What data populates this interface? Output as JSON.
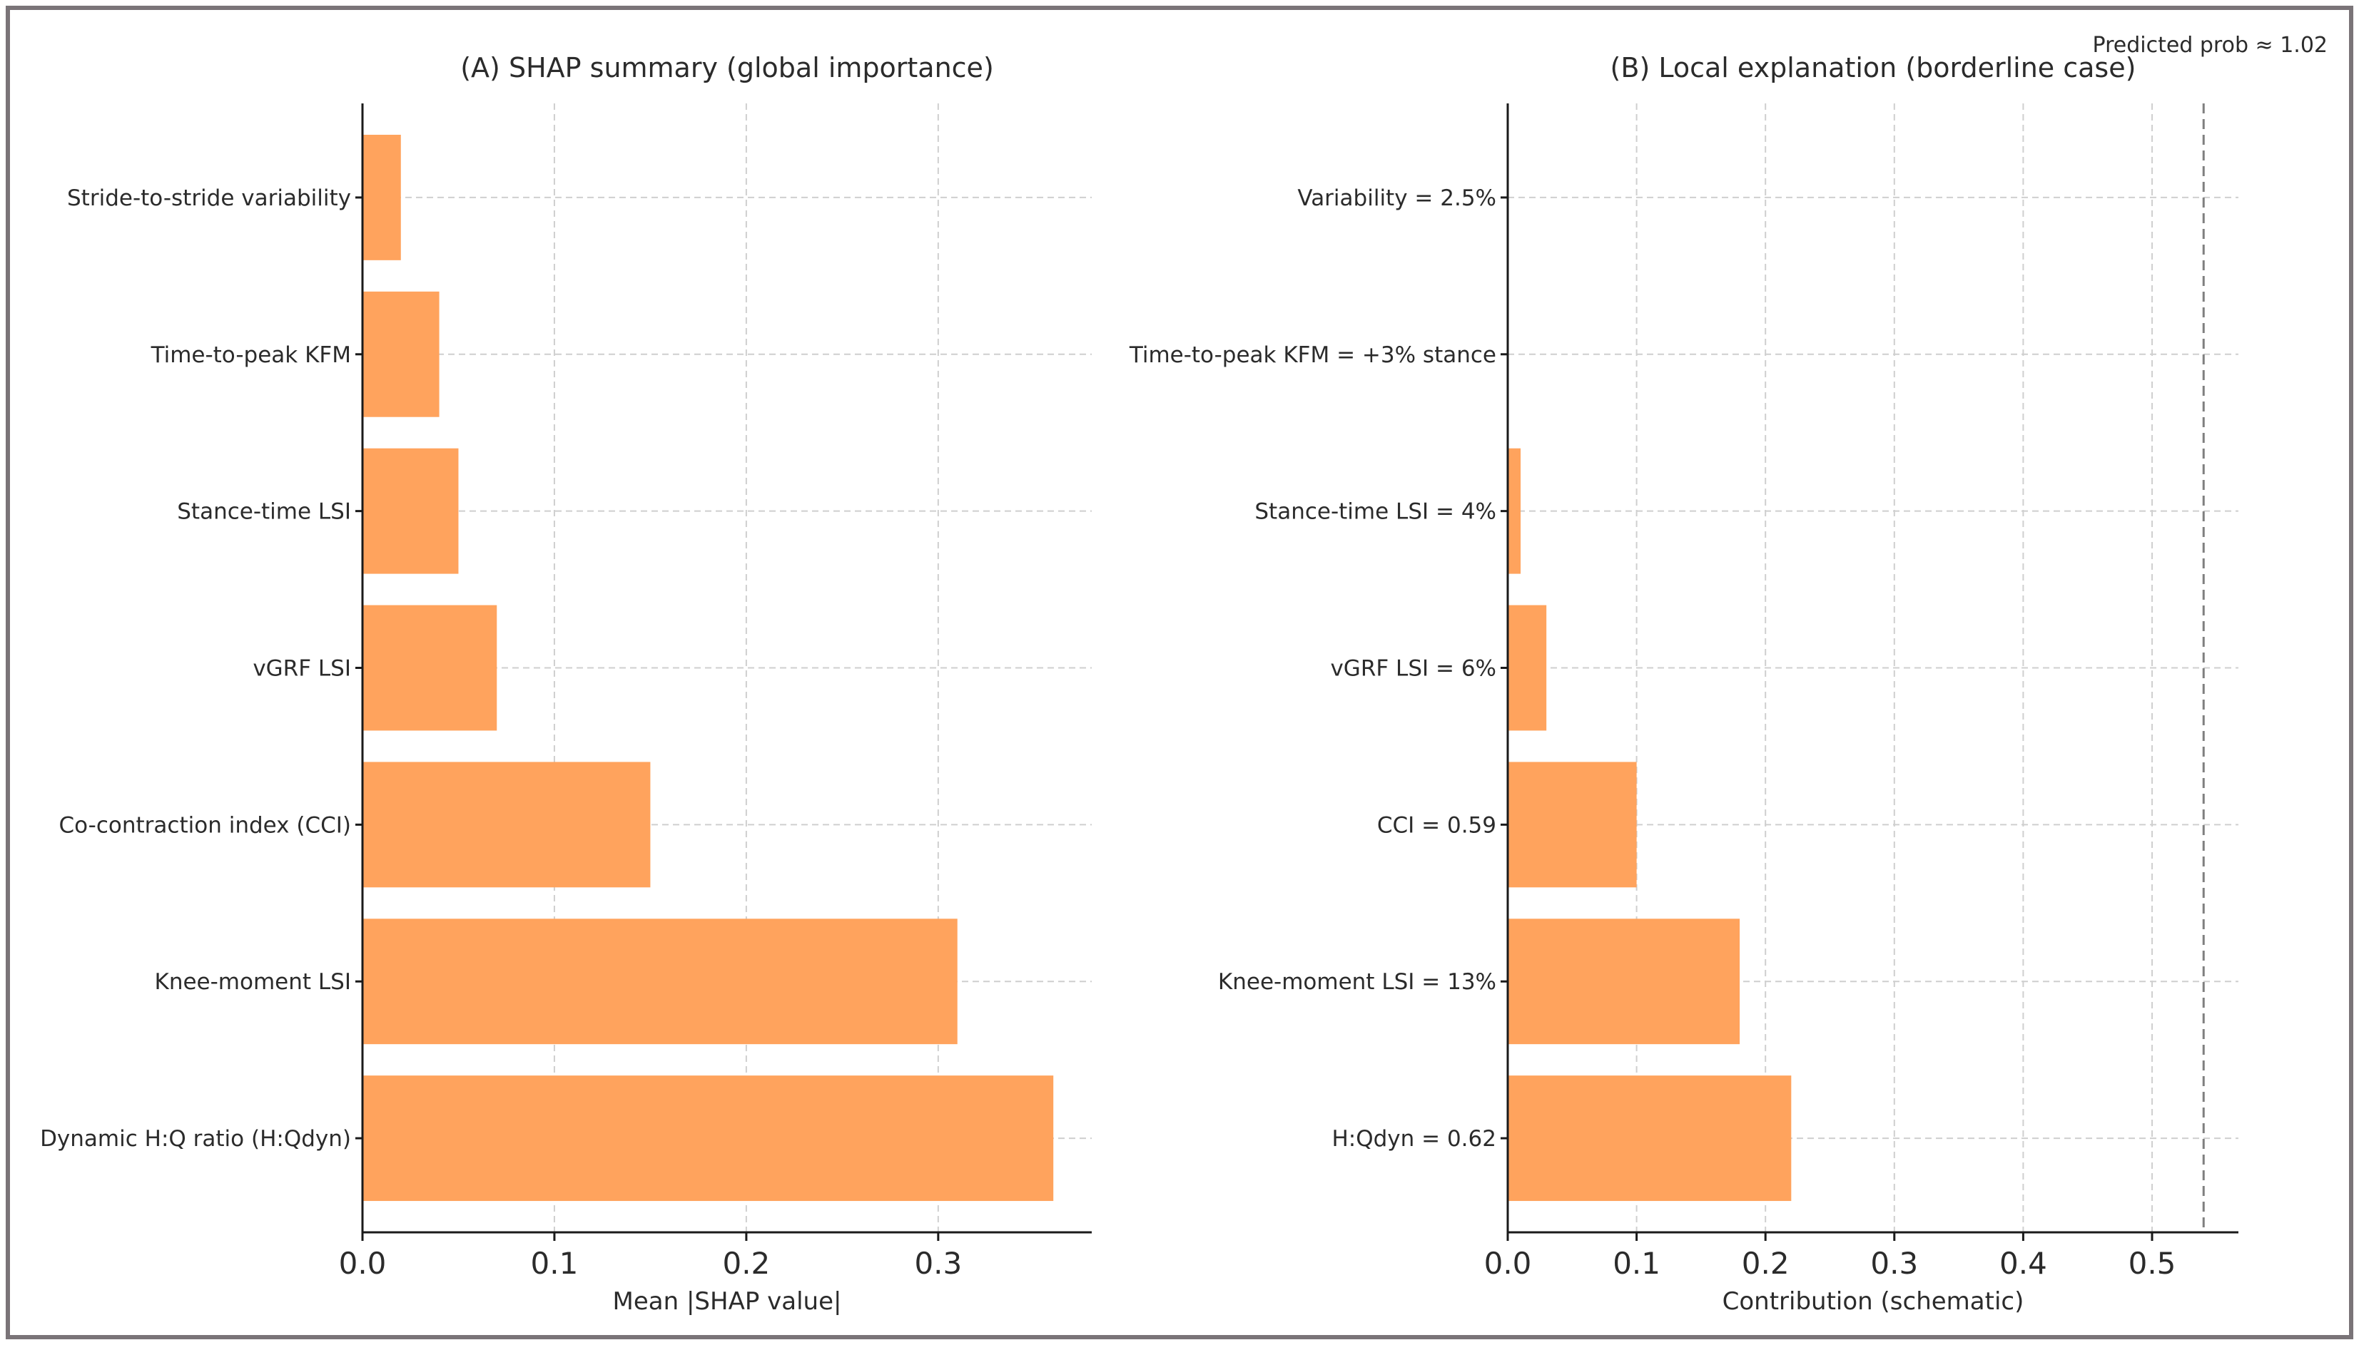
{
  "note": "Predicted prob ≈ 1.02",
  "colors": {
    "bar": "#ffa35d",
    "axis": "#1a1a1a",
    "grid": "#cfcfcf",
    "frame": "#7a7478",
    "reference_line": "#7f7f7f"
  },
  "chart_data": [
    {
      "type": "bar",
      "orientation": "horizontal",
      "title": "(A) SHAP summary (global importance)",
      "xlabel": "Mean |SHAP value|",
      "ylabel": "",
      "categories": [
        "Dynamic H:Q ratio (H:Qdyn)",
        "Knee-moment LSI",
        "Co-contraction index (CCI)",
        "vGRF LSI",
        "Stance-time LSI",
        "Time-to-peak KFM",
        "Stride-to-stride variability"
      ],
      "values": [
        0.36,
        0.31,
        0.15,
        0.07,
        0.05,
        0.04,
        0.02
      ],
      "xlim": [
        0,
        0.38
      ],
      "xticks": [
        0.0,
        0.1,
        0.2,
        0.3
      ],
      "xtick_labels": [
        "0.0",
        "0.1",
        "0.2",
        "0.3"
      ],
      "grid": true
    },
    {
      "type": "bar",
      "orientation": "horizontal",
      "title": "(B) Local explanation (borderline case)",
      "xlabel": "Contribution (schematic)",
      "ylabel": "",
      "categories": [
        "H:Qdyn = 0.62",
        "Knee-moment LSI = 13%",
        "CCI = 0.59",
        "vGRF LSI = 6%",
        "Stance-time LSI = 4%",
        "Time-to-peak KFM = +3% stance",
        "Variability = 2.5%"
      ],
      "values": [
        0.22,
        0.18,
        0.1,
        0.03,
        0.01,
        0.0,
        0.0
      ],
      "xlim": [
        0,
        0.567
      ],
      "xticks": [
        0.0,
        0.1,
        0.2,
        0.3,
        0.4,
        0.5
      ],
      "xtick_labels": [
        "0.0",
        "0.1",
        "0.2",
        "0.3",
        "0.4",
        "0.5"
      ],
      "reference_line_x": 0.54,
      "grid": true
    }
  ]
}
